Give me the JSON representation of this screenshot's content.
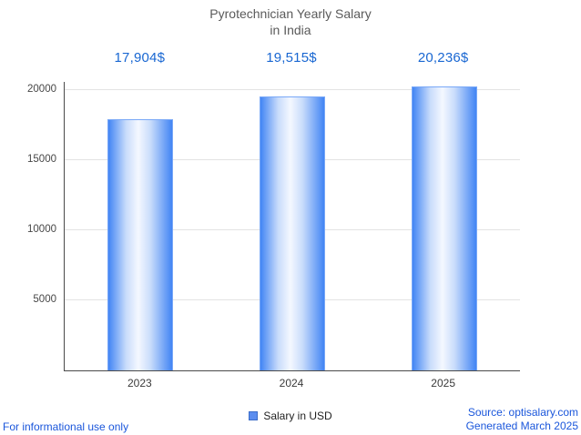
{
  "title": {
    "line1": "Pyrotechnician Yearly Salary",
    "line2": "in India"
  },
  "chart_data": {
    "type": "bar",
    "title": "Pyrotechnician Yearly Salary in India",
    "categories": [
      "2023",
      "2024",
      "2025"
    ],
    "values": [
      17904,
      19515,
      20236
    ],
    "value_labels": [
      "17,904$",
      "19,515$",
      "20,236$"
    ],
    "series_name": "Salary in USD",
    "xlabel": "",
    "ylabel": "",
    "ylim": [
      0,
      20600
    ],
    "yticks": [
      5000,
      10000,
      15000,
      20000
    ],
    "grid": true,
    "legend_position": "bottom"
  },
  "legend": {
    "label": "Salary in USD"
  },
  "footer": {
    "left": "For informational use only",
    "source": "Source: optisalary.com",
    "generated": "Generated March 2025"
  },
  "colors": {
    "bar_blue": "#4285f4",
    "bar_center": "#f4f8ff",
    "value_label_blue": "#1967d2",
    "footer_link_blue": "#1a56db",
    "title_gray": "#5a5a5a",
    "gridline_gray": "#e3e3e3"
  }
}
